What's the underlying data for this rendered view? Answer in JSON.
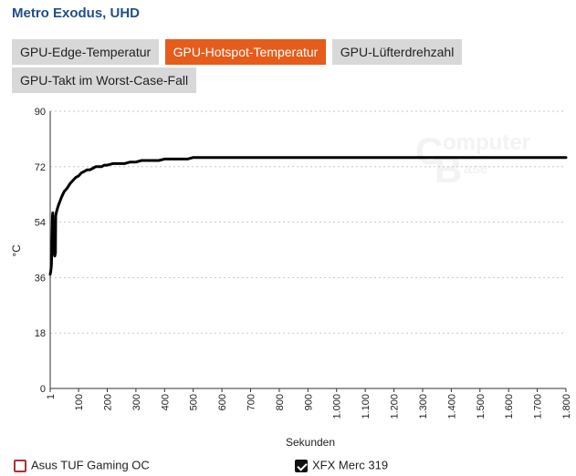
{
  "title": "Metro Exodus, UHD",
  "tabs": [
    {
      "label": "GPU-Edge-Temperatur",
      "active": false
    },
    {
      "label": "GPU-Hotspot-Temperatur",
      "active": true
    },
    {
      "label": "GPU-Lüfterdrehzahl",
      "active": false
    },
    {
      "label": "GPU-Takt im Worst-Case-Fall",
      "active": false
    }
  ],
  "colors": {
    "active_tab": "#e65c1a",
    "title": "#1f4e8a",
    "series": "#000000"
  },
  "legend": [
    {
      "label": "Asus TUF Gaming OC",
      "checked": false,
      "color": "#b0302e"
    },
    {
      "label": "XFX Merc 319",
      "checked": true,
      "color": "#000000"
    }
  ],
  "watermark": "ComputerBase",
  "chart_data": {
    "type": "line",
    "xlabel": "Sekunden",
    "ylabel": "°C",
    "xlim": [
      1,
      1800
    ],
    "ylim": [
      0,
      90
    ],
    "xticks": [
      1,
      100,
      200,
      300,
      400,
      500,
      600,
      700,
      800,
      900,
      1000,
      1100,
      1200,
      1300,
      1400,
      1500,
      1600,
      1700,
      1800
    ],
    "xtick_labels": [
      "1",
      "100",
      "200",
      "300",
      "400",
      "500",
      "600",
      "700",
      "800",
      "900",
      "1.000",
      "1.100",
      "1.200",
      "1.300",
      "1.400",
      "1.500",
      "1.600",
      "1.700",
      "1.800"
    ],
    "yticks": [
      0,
      18,
      36,
      54,
      72,
      90
    ],
    "ytick_labels": [
      "0",
      "18",
      "36",
      "54",
      "72",
      "90"
    ],
    "grid": "horizontal-dotted",
    "legend_position": "bottom",
    "series": [
      {
        "name": "XFX Merc 319",
        "x": [
          1,
          3,
          5,
          7,
          9,
          10,
          11,
          13,
          15,
          17,
          19,
          20,
          22,
          25,
          28,
          32,
          36,
          40,
          45,
          50,
          55,
          60,
          70,
          80,
          90,
          100,
          110,
          120,
          130,
          140,
          150,
          160,
          170,
          180,
          190,
          200,
          220,
          240,
          260,
          280,
          300,
          320,
          340,
          360,
          380,
          400,
          420,
          450,
          480,
          500,
          520,
          560,
          600,
          650,
          700,
          800,
          900,
          1000,
          1100,
          1200,
          1300,
          1400,
          1500,
          1600,
          1700,
          1800
        ],
        "y": [
          37,
          38,
          40,
          46,
          56,
          57,
          52,
          45,
          44,
          43,
          44,
          56,
          57,
          58,
          59,
          60,
          61,
          62,
          63,
          64,
          64.5,
          65,
          66.5,
          67.5,
          68.5,
          69,
          70,
          70.5,
          71,
          71,
          71.5,
          72,
          72,
          72,
          72.5,
          72.5,
          73,
          73,
          73,
          73.5,
          73.5,
          74,
          74,
          74,
          74,
          74.5,
          74.5,
          74.5,
          74.5,
          75,
          75,
          75,
          75,
          75,
          75,
          75,
          75,
          75,
          75,
          75,
          75,
          75,
          75,
          75,
          75,
          75
        ]
      }
    ]
  }
}
